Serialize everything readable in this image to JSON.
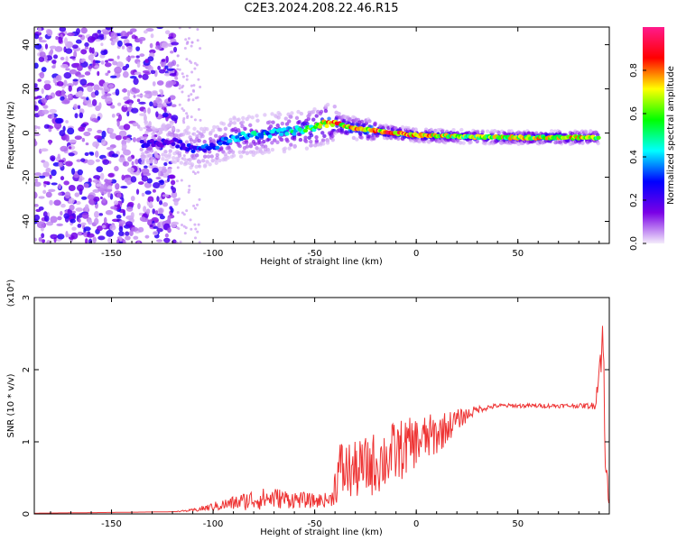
{
  "title": "C2E3.2024.208.22.46.R15",
  "chart_data": [
    {
      "type": "heatmap",
      "title": "C2E3.2024.208.22.46.R15",
      "xlabel": "Height of straight line (km)",
      "ylabel": "Frequency (Hz)",
      "xlim": [
        -188,
        95
      ],
      "ylim": [
        -50,
        48
      ],
      "x_ticks": [
        -150,
        -100,
        -50,
        0,
        50
      ],
      "y_ticks": [
        -40,
        -20,
        0,
        20,
        40
      ],
      "colorbar": {
        "label": "Normalized spectral amplitude",
        "range": [
          0,
          1
        ],
        "ticks": [
          0.0,
          0.2,
          0.4,
          0.6,
          0.8
        ],
        "colors": [
          "#f4ecfb",
          "#7a00e6",
          "#0000ff",
          "#00ffff",
          "#00ff00",
          "#ffff00",
          "#ff0000",
          "#ff1a8c"
        ]
      },
      "noise_region_x": [
        -188,
        -118
      ],
      "ridge": {
        "x": [
          -135,
          -120,
          -110,
          -100,
          -90,
          -80,
          -70,
          -60,
          -50,
          -45,
          -40,
          -35,
          -30,
          -20,
          -10,
          0,
          20,
          40,
          60,
          80,
          90
        ],
        "y": [
          -5,
          -4,
          -7,
          -6,
          -2,
          -1,
          0,
          1,
          2,
          4,
          5,
          3,
          2,
          1,
          0,
          -1,
          -1.5,
          -2,
          -2,
          -2,
          -2
        ],
        "amplitude": [
          0.25,
          0.2,
          0.3,
          0.35,
          0.4,
          0.45,
          0.45,
          0.55,
          0.65,
          0.8,
          0.85,
          0.8,
          0.85,
          0.9,
          0.9,
          0.85,
          0.7,
          0.7,
          0.75,
          0.8,
          0.6
        ]
      }
    },
    {
      "type": "line",
      "xlabel": "Height of straight line (km)",
      "ylabel": "SNR (10 * v/v)",
      "y_multiplier": "(x10⁴)",
      "xlim": [
        -188,
        95
      ],
      "ylim": [
        0,
        3
      ],
      "x_ticks": [
        -150,
        -100,
        -50,
        0,
        50
      ],
      "y_ticks": [
        0,
        1,
        2,
        3
      ],
      "color": "#ee3333",
      "envelope": {
        "x": [
          -188,
          -150,
          -120,
          -110,
          -100,
          -90,
          -80,
          -70,
          -60,
          -50,
          -42,
          -38,
          -30,
          -20,
          -10,
          0,
          10,
          20,
          30,
          40,
          50,
          60,
          70,
          80,
          88,
          92,
          93,
          95
        ],
        "y": [
          0.01,
          0.02,
          0.03,
          0.05,
          0.1,
          0.15,
          0.2,
          0.22,
          0.2,
          0.18,
          0.2,
          0.6,
          0.6,
          0.7,
          0.85,
          1.0,
          1.1,
          1.3,
          1.45,
          1.5,
          1.5,
          1.5,
          1.5,
          1.5,
          1.5,
          2.5,
          0.6,
          0.3
        ]
      },
      "noise": [
        0.0,
        0.0,
        0.0,
        0.02,
        0.06,
        0.1,
        0.15,
        0.15,
        0.12,
        0.1,
        0.1,
        0.45,
        0.4,
        0.45,
        0.45,
        0.35,
        0.3,
        0.15,
        0.05,
        0.03,
        0.03,
        0.03,
        0.03,
        0.03,
        0.05,
        0.4,
        0.3,
        0.2
      ]
    }
  ]
}
